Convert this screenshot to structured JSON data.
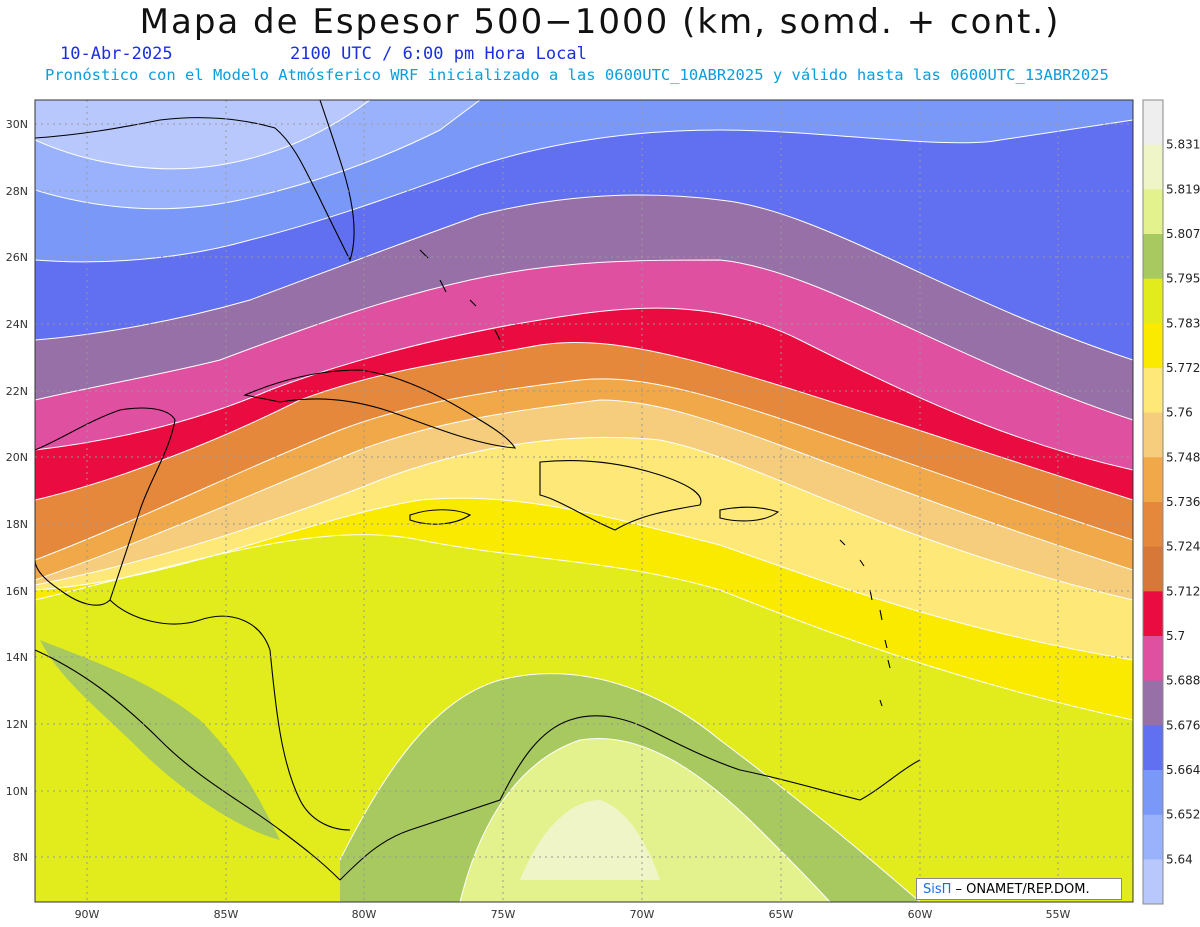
{
  "header": {
    "title": "Mapa de Espesor 500−1000 (km, somd. + cont.)",
    "date": "10-Abr-2025",
    "time": "2100 UTC / 6:00 pm Hora Local",
    "subtitle": "Pronóstico con el Modelo Atmósferico WRF inicializado a las 0600UTC_10ABR2025 y válido hasta las  0600UTC_13ABR2025"
  },
  "map": {
    "lon_labels": [
      "90W",
      "85W",
      "80W",
      "75W",
      "70W",
      "65W",
      "60W",
      "55W"
    ],
    "lat_labels": [
      "30N",
      "28N",
      "26N",
      "24N",
      "22N",
      "20N",
      "18N",
      "16N",
      "14N",
      "12N",
      "10N",
      "8N"
    ],
    "credit_logo": "SisΠ",
    "credit_text": " – ONAMET/REP.DOM."
  },
  "colorbar": {
    "labels": [
      "5.831",
      "5.819",
      "5.807",
      "5.795",
      "5.783",
      "5.772",
      "5.76",
      "5.748",
      "5.736",
      "5.724",
      "5.712",
      "5.7",
      "5.688",
      "5.676",
      "5.664",
      "5.652",
      "5.64"
    ],
    "colors": [
      "#eeeeee",
      "#f0f5c8",
      "#e3f28c",
      "#a8c860",
      "#e2ec1c",
      "#faea00",
      "#fde878",
      "#f5cd7c",
      "#f0a848",
      "#e6883c",
      "#d87838",
      "#ea0c40",
      "#e050a0",
      "#9870a8",
      "#6070f0",
      "#7a98f8",
      "#9ab2fc",
      "#b8c8fc"
    ]
  },
  "colors": {
    "contour": "#ffffff",
    "coast": "#000000"
  }
}
